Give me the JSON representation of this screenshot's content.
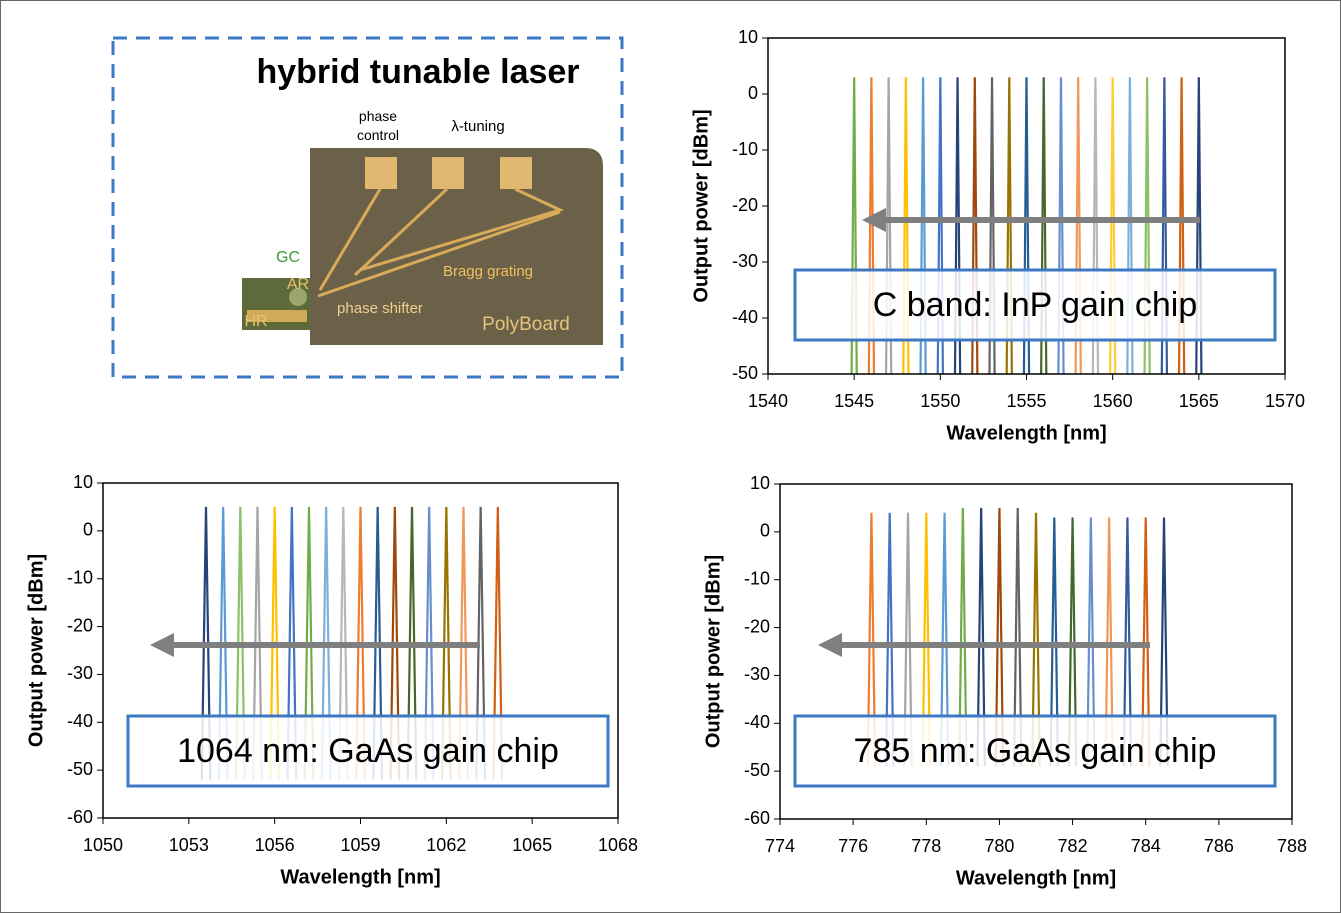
{
  "photo": {
    "title": "hybrid tunable laser",
    "phase_control": [
      "phase",
      "control"
    ],
    "tuning": "λ-tuning",
    "gc": "GC",
    "ar": "AR",
    "hr": "HR",
    "phase_shifter": "phase shifter",
    "bragg": "Bragg grating",
    "polyboard": "PolyBoard"
  },
  "chart_data": [
    {
      "type": "line",
      "xlabel": "Wavelength [nm]",
      "ylabel": "Output power [dBm]",
      "annotation": "C band: InP gain chip",
      "xlim": [
        1540,
        1570
      ],
      "xticks": [
        1540,
        1545,
        1550,
        1555,
        1560,
        1565,
        1570
      ],
      "ylim": [
        -50,
        10
      ],
      "yticks": [
        -50,
        -40,
        -30,
        -20,
        -10,
        0,
        10
      ],
      "series": [
        {
          "color": "#70ad47",
          "x": [
            1544.85,
            1545,
            1545.15
          ],
          "values": [
            -50,
            3,
            -50
          ]
        },
        {
          "color": "#ed7d31",
          "x": [
            1545.85,
            1546,
            1546.15
          ],
          "values": [
            -50,
            3,
            -50
          ]
        },
        {
          "color": "#a5a5a5",
          "x": [
            1546.85,
            1547,
            1547.15
          ],
          "values": [
            -50,
            3,
            -50
          ]
        },
        {
          "color": "#ffc000",
          "x": [
            1547.85,
            1548,
            1548.15
          ],
          "values": [
            -50,
            3,
            -50
          ]
        },
        {
          "color": "#5b9bd5",
          "x": [
            1548.85,
            1549,
            1549.15
          ],
          "values": [
            -50,
            3,
            -50
          ]
        },
        {
          "color": "#4472c4",
          "x": [
            1549.85,
            1550,
            1550.15
          ],
          "values": [
            -50,
            3,
            -50
          ]
        },
        {
          "color": "#264478",
          "x": [
            1550.85,
            1551,
            1551.15
          ],
          "values": [
            -50,
            3,
            -50
          ]
        },
        {
          "color": "#9e480e",
          "x": [
            1551.85,
            1552,
            1552.15
          ],
          "values": [
            -50,
            3,
            -50
          ]
        },
        {
          "color": "#636363",
          "x": [
            1552.85,
            1553,
            1553.15
          ],
          "values": [
            -50,
            3,
            -50
          ]
        },
        {
          "color": "#997300",
          "x": [
            1553.85,
            1554,
            1554.15
          ],
          "values": [
            -50,
            3,
            -50
          ]
        },
        {
          "color": "#255e91",
          "x": [
            1554.85,
            1555,
            1555.15
          ],
          "values": [
            -50,
            3,
            -50
          ]
        },
        {
          "color": "#43682b",
          "x": [
            1555.85,
            1556,
            1556.15
          ],
          "values": [
            -50,
            3,
            -50
          ]
        },
        {
          "color": "#698ed0",
          "x": [
            1556.85,
            1557,
            1557.15
          ],
          "values": [
            -50,
            3,
            -50
          ]
        },
        {
          "color": "#f1975a",
          "x": [
            1557.85,
            1558,
            1558.15
          ],
          "values": [
            -50,
            3,
            -50
          ]
        },
        {
          "color": "#b7b7b7",
          "x": [
            1558.85,
            1559,
            1559.15
          ],
          "values": [
            -50,
            3,
            -50
          ]
        },
        {
          "color": "#ffcd33",
          "x": [
            1559.85,
            1560,
            1560.15
          ],
          "values": [
            -50,
            3,
            -50
          ]
        },
        {
          "color": "#7cafdd",
          "x": [
            1560.85,
            1561,
            1561.15
          ],
          "values": [
            -50,
            3,
            -50
          ]
        },
        {
          "color": "#8cc168",
          "x": [
            1561.85,
            1562,
            1562.15
          ],
          "values": [
            -50,
            3,
            -50
          ]
        },
        {
          "color": "#335aa1",
          "x": [
            1562.85,
            1563,
            1563.15
          ],
          "values": [
            -50,
            3,
            -50
          ]
        },
        {
          "color": "#d26012",
          "x": [
            1563.85,
            1564,
            1564.15
          ],
          "values": [
            -50,
            3,
            -50
          ]
        },
        {
          "color": "#264478",
          "x": [
            1564.85,
            1565,
            1565.15
          ],
          "values": [
            -50,
            3,
            -50
          ]
        }
      ]
    },
    {
      "type": "line",
      "xlabel": "Wavelength [nm]",
      "ylabel": "Output power [dBm]",
      "annotation": "1064 nm: GaAs gain chip",
      "xlim": [
        1050,
        1068
      ],
      "xticks": [
        1050,
        1053,
        1056,
        1059,
        1062,
        1065,
        1068
      ],
      "ylim": [
        -60,
        10
      ],
      "yticks": [
        -60,
        -50,
        -40,
        -30,
        -20,
        -10,
        0,
        10
      ],
      "series": [
        {
          "color": "#264478",
          "x": [
            1053.45,
            1053.6,
            1053.75
          ],
          "values": [
            -52,
            5,
            -52
          ]
        },
        {
          "color": "#5b9bd5",
          "x": [
            1054.05,
            1054.2,
            1054.35
          ],
          "values": [
            -52,
            5,
            -52
          ]
        },
        {
          "color": "#8cc168",
          "x": [
            1054.65,
            1054.8,
            1054.95
          ],
          "values": [
            -52,
            5,
            -52
          ]
        },
        {
          "color": "#a5a5a5",
          "x": [
            1055.25,
            1055.4,
            1055.55
          ],
          "values": [
            -52,
            5,
            -52
          ]
        },
        {
          "color": "#ffc000",
          "x": [
            1055.85,
            1056,
            1056.15
          ],
          "values": [
            -52,
            5,
            -52
          ]
        },
        {
          "color": "#4472c4",
          "x": [
            1056.45,
            1056.6,
            1056.75
          ],
          "values": [
            -52,
            5,
            -52
          ]
        },
        {
          "color": "#70ad47",
          "x": [
            1057.05,
            1057.2,
            1057.35
          ],
          "values": [
            -52,
            5,
            -52
          ]
        },
        {
          "color": "#7cafdd",
          "x": [
            1057.65,
            1057.8,
            1057.95
          ],
          "values": [
            -52,
            5,
            -52
          ]
        },
        {
          "color": "#b7b7b7",
          "x": [
            1058.25,
            1058.4,
            1058.55
          ],
          "values": [
            -52,
            5,
            -52
          ]
        },
        {
          "color": "#ed7d31",
          "x": [
            1058.85,
            1059,
            1059.15
          ],
          "values": [
            -52,
            5,
            -52
          ]
        },
        {
          "color": "#255e91",
          "x": [
            1059.45,
            1059.6,
            1059.75
          ],
          "values": [
            -52,
            5,
            -52
          ]
        },
        {
          "color": "#9e480e",
          "x": [
            1060.05,
            1060.2,
            1060.35
          ],
          "values": [
            -52,
            5,
            -52
          ]
        },
        {
          "color": "#43682b",
          "x": [
            1060.65,
            1060.8,
            1060.95
          ],
          "values": [
            -52,
            5,
            -52
          ]
        },
        {
          "color": "#698ed0",
          "x": [
            1061.25,
            1061.4,
            1061.55
          ],
          "values": [
            -52,
            5,
            -52
          ]
        },
        {
          "color": "#997300",
          "x": [
            1061.85,
            1062,
            1062.15
          ],
          "values": [
            -52,
            5,
            -52
          ]
        },
        {
          "color": "#f1975a",
          "x": [
            1062.45,
            1062.6,
            1062.75
          ],
          "values": [
            -52,
            5,
            -52
          ]
        },
        {
          "color": "#636363",
          "x": [
            1063.05,
            1063.2,
            1063.35
          ],
          "values": [
            -52,
            5,
            -52
          ]
        },
        {
          "color": "#d26012",
          "x": [
            1063.65,
            1063.8,
            1063.95
          ],
          "values": [
            -52,
            5,
            -52
          ]
        }
      ]
    },
    {
      "type": "line",
      "xlabel": "Wavelength [nm]",
      "ylabel": "Output power [dBm]",
      "annotation": "785 nm: GaAs gain chip",
      "xlim": [
        774,
        788
      ],
      "xticks": [
        774,
        776,
        778,
        780,
        782,
        784,
        786,
        788
      ],
      "ylim": [
        -60,
        10
      ],
      "yticks": [
        -60,
        -50,
        -40,
        -30,
        -20,
        -10,
        0,
        10
      ],
      "series": [
        {
          "color": "#ed7d31",
          "x": [
            776.4,
            776.5,
            776.6
          ],
          "values": [
            -49,
            4,
            -49
          ]
        },
        {
          "color": "#4472c4",
          "x": [
            776.9,
            777,
            777.1
          ],
          "values": [
            -49,
            4,
            -49
          ]
        },
        {
          "color": "#a5a5a5",
          "x": [
            777.4,
            777.5,
            777.6
          ],
          "values": [
            -49,
            4,
            -49
          ]
        },
        {
          "color": "#ffc000",
          "x": [
            777.9,
            778,
            778.1
          ],
          "values": [
            -49,
            4,
            -49
          ]
        },
        {
          "color": "#5b9bd5",
          "x": [
            778.4,
            778.5,
            778.6
          ],
          "values": [
            -49,
            4,
            -49
          ]
        },
        {
          "color": "#70ad47",
          "x": [
            778.9,
            779,
            779.1
          ],
          "values": [
            -49,
            5,
            -49
          ]
        },
        {
          "color": "#264478",
          "x": [
            779.4,
            779.5,
            779.6
          ],
          "values": [
            -49,
            5,
            -49
          ]
        },
        {
          "color": "#9e480e",
          "x": [
            779.9,
            780,
            780.1
          ],
          "values": [
            -49,
            5,
            -49
          ]
        },
        {
          "color": "#636363",
          "x": [
            780.4,
            780.5,
            780.6
          ],
          "values": [
            -49,
            5,
            -49
          ]
        },
        {
          "color": "#997300",
          "x": [
            780.9,
            781,
            781.1
          ],
          "values": [
            -49,
            4,
            -49
          ]
        },
        {
          "color": "#255e91",
          "x": [
            781.4,
            781.5,
            781.6
          ],
          "values": [
            -49,
            3,
            -49
          ]
        },
        {
          "color": "#43682b",
          "x": [
            781.9,
            782,
            782.1
          ],
          "values": [
            -49,
            3,
            -49
          ]
        },
        {
          "color": "#698ed0",
          "x": [
            782.4,
            782.5,
            782.6
          ],
          "values": [
            -49,
            3,
            -49
          ]
        },
        {
          "color": "#f1975a",
          "x": [
            782.9,
            783,
            783.1
          ],
          "values": [
            -49,
            3,
            -49
          ]
        },
        {
          "color": "#335aa1",
          "x": [
            783.4,
            783.5,
            783.6
          ],
          "values": [
            -49,
            3,
            -49
          ]
        },
        {
          "color": "#d26012",
          "x": [
            783.9,
            784,
            784.1
          ],
          "values": [
            -49,
            3,
            -49
          ]
        },
        {
          "color": "#264478",
          "x": [
            784.4,
            784.5,
            784.6
          ],
          "values": [
            -49,
            3,
            -49
          ]
        }
      ]
    }
  ]
}
